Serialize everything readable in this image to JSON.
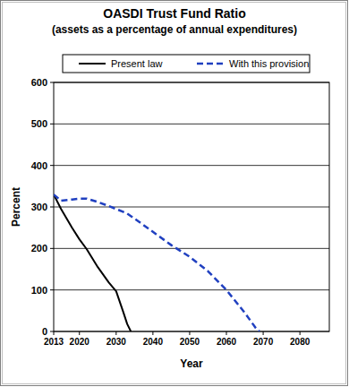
{
  "chart_data": {
    "type": "line",
    "title": "OASDI Trust Fund Ratio",
    "subtitle": "(assets as a percentage of annual expenditures)",
    "x_label": "Year",
    "y_label": "Percent",
    "x": [
      2013,
      2015,
      2018,
      2020,
      2022,
      2025,
      2028,
      2030,
      2032,
      2033,
      2034,
      2035,
      2040,
      2045,
      2050,
      2055,
      2060,
      2065,
      2068,
      2069
    ],
    "series": [
      {
        "name": "Present law",
        "color": "#000000",
        "line_style": "solid",
        "values": [
          330,
          295,
          250,
          222,
          198,
          155,
          118,
          97,
          45,
          18,
          0,
          null,
          null,
          null,
          null,
          null,
          null,
          null,
          null,
          null
        ]
      },
      {
        "name": "With this provision",
        "color": "#2040c0",
        "line_style": "dashed",
        "values": [
          330,
          315,
          318,
          320,
          320,
          312,
          302,
          295,
          288,
          284,
          278,
          272,
          240,
          208,
          180,
          145,
          100,
          45,
          8,
          0
        ]
      }
    ],
    "xlim": [
      2013,
      2088
    ],
    "ylim": [
      0,
      600
    ],
    "xticks": [
      2013,
      2020,
      2030,
      2040,
      2050,
      2060,
      2070,
      2080
    ],
    "yticks": [
      0,
      100,
      200,
      300,
      400,
      500,
      600
    ],
    "grid": true,
    "legend": "top"
  }
}
